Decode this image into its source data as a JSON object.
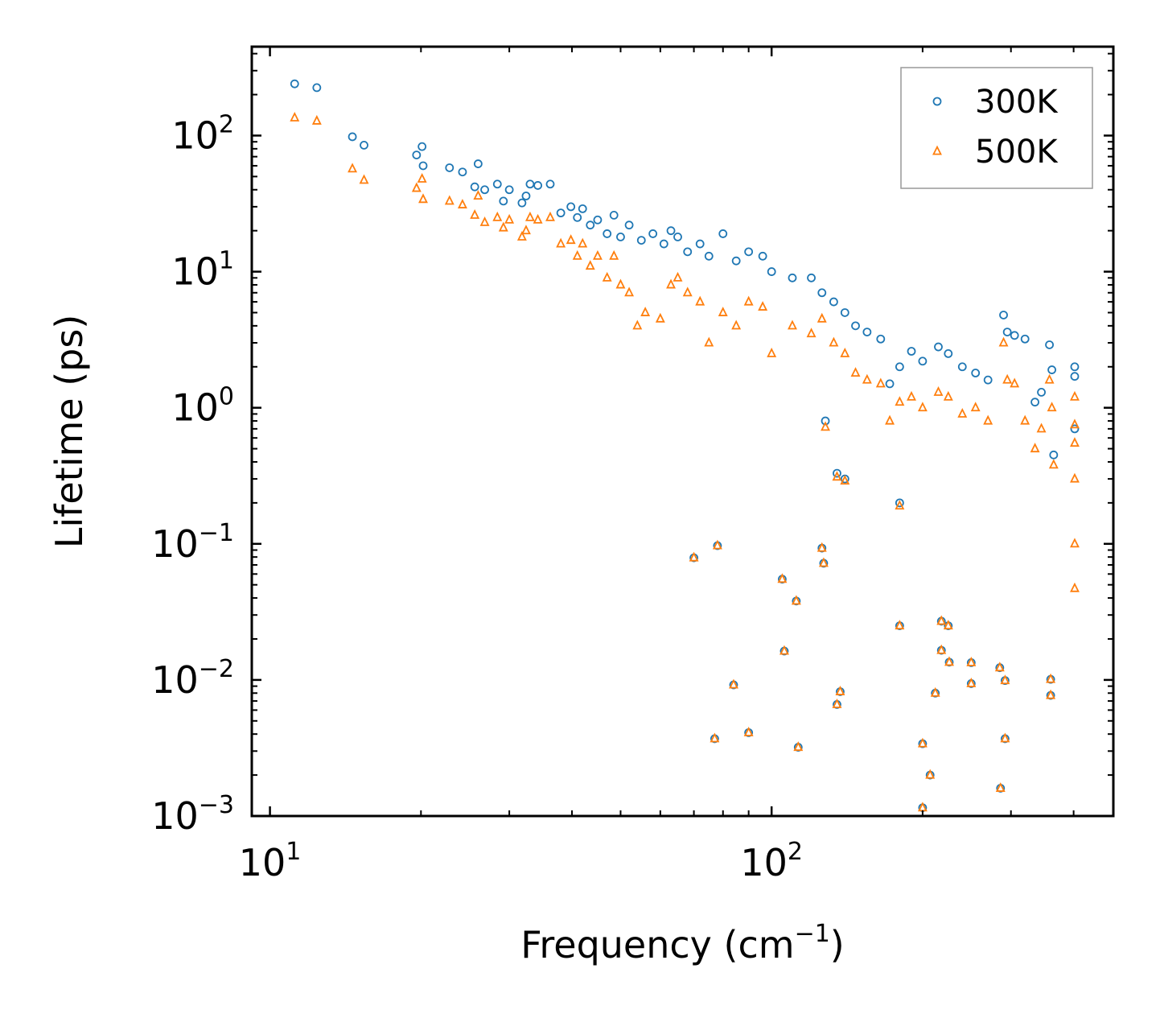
{
  "chart_data": {
    "type": "scatter",
    "title": "",
    "xlabel": "Frequency (cm",
    "xlabel_superscript": "−1",
    "xlabel_suffix": ")",
    "ylabel": "Lifetime (ps)",
    "xscale": "log",
    "yscale": "log",
    "xlim": [
      9.2,
      480
    ],
    "ylim": [
      0.001,
      450
    ],
    "x_ticks": [
      {
        "base": "10",
        "exp": "1",
        "value": 10
      },
      {
        "base": "10",
        "exp": "2",
        "value": 100
      }
    ],
    "y_ticks": [
      {
        "base": "10",
        "exp": "−3",
        "value": 0.001
      },
      {
        "base": "10",
        "exp": "−2",
        "value": 0.01
      },
      {
        "base": "10",
        "exp": "−1",
        "value": 0.1
      },
      {
        "base": "10",
        "exp": "0",
        "value": 1
      },
      {
        "base": "10",
        "exp": "1",
        "value": 10
      },
      {
        "base": "10",
        "exp": "2",
        "value": 100
      }
    ],
    "grid": false,
    "legend_position": "top-right",
    "series": [
      {
        "name": "300K",
        "marker": "circle-open",
        "color": "#1f77b4",
        "points": [
          [
            11.2,
            240
          ],
          [
            12.4,
            225
          ],
          [
            14.6,
            98
          ],
          [
            15.4,
            85
          ],
          [
            19.6,
            72
          ],
          [
            20.1,
            83
          ],
          [
            20.2,
            60
          ],
          [
            22.8,
            58
          ],
          [
            24.2,
            54
          ],
          [
            25.6,
            42
          ],
          [
            26.0,
            62
          ],
          [
            26.8,
            40
          ],
          [
            28.4,
            44
          ],
          [
            29.2,
            33
          ],
          [
            30.0,
            40
          ],
          [
            31.8,
            32
          ],
          [
            32.4,
            36
          ],
          [
            33.0,
            44
          ],
          [
            34.2,
            43
          ],
          [
            36.2,
            44
          ],
          [
            38.0,
            27
          ],
          [
            39.8,
            30
          ],
          [
            41.0,
            25
          ],
          [
            42.0,
            29
          ],
          [
            43.5,
            22
          ],
          [
            45.0,
            24
          ],
          [
            47.0,
            19
          ],
          [
            48.5,
            26
          ],
          [
            50.0,
            18
          ],
          [
            52.0,
            22
          ],
          [
            55.0,
            17
          ],
          [
            58.0,
            19
          ],
          [
            61.0,
            16
          ],
          [
            63.0,
            20
          ],
          [
            65.0,
            18
          ],
          [
            68.0,
            14
          ],
          [
            72.0,
            16
          ],
          [
            75.0,
            13
          ],
          [
            80.0,
            19
          ],
          [
            85.0,
            12
          ],
          [
            90.0,
            14
          ],
          [
            96.0,
            13
          ],
          [
            100.0,
            10
          ],
          [
            110.0,
            9
          ],
          [
            120.0,
            9
          ],
          [
            126.0,
            7
          ],
          [
            133.0,
            6
          ],
          [
            140.0,
            5
          ],
          [
            147.0,
            4
          ],
          [
            155.0,
            3.6
          ],
          [
            165.0,
            3.2
          ],
          [
            172.0,
            1.5
          ],
          [
            180.0,
            2.0
          ],
          [
            190.0,
            2.6
          ],
          [
            200.0,
            2.2
          ],
          [
            215.0,
            2.8
          ],
          [
            225.0,
            2.5
          ],
          [
            240.0,
            2.0
          ],
          [
            255.0,
            1.8
          ],
          [
            270.0,
            1.6
          ],
          [
            290.0,
            4.8
          ],
          [
            295.0,
            3.6
          ],
          [
            305.0,
            3.4
          ],
          [
            320.0,
            3.2
          ],
          [
            335.0,
            1.1
          ],
          [
            345.0,
            1.3
          ],
          [
            358.0,
            2.9
          ],
          [
            362.0,
            1.9
          ],
          [
            365.0,
            0.45
          ],
          [
            402.0,
            2.0
          ],
          [
            402.0,
            1.7
          ],
          [
            402.0,
            0.7
          ],
          [
            70.0,
            0.079
          ],
          [
            78.0,
            0.097
          ],
          [
            105.0,
            0.055
          ],
          [
            112.0,
            0.038
          ],
          [
            126.0,
            0.093
          ],
          [
            127.0,
            0.072
          ],
          [
            128.0,
            0.8
          ],
          [
            135.0,
            0.33
          ],
          [
            140.0,
            0.3
          ],
          [
            180.0,
            0.2
          ],
          [
            84.0,
            0.0092
          ],
          [
            77.0,
            0.0037
          ],
          [
            90.0,
            0.0041
          ],
          [
            106.0,
            0.0163
          ],
          [
            113.0,
            0.0032
          ],
          [
            135.0,
            0.0066
          ],
          [
            137.0,
            0.0082
          ],
          [
            180.0,
            0.025
          ],
          [
            200.0,
            0.0034
          ],
          [
            207.0,
            0.002
          ],
          [
            212.0,
            0.008
          ],
          [
            218.0,
            0.027
          ],
          [
            218.0,
            0.0165
          ],
          [
            225.0,
            0.025
          ],
          [
            226.0,
            0.0135
          ],
          [
            250.0,
            0.0134
          ],
          [
            250.0,
            0.0094
          ],
          [
            285.0,
            0.0123
          ],
          [
            286.0,
            0.0016
          ],
          [
            292.0,
            0.0099
          ],
          [
            292.0,
            0.0037
          ],
          [
            360.0,
            0.0101
          ],
          [
            360.0,
            0.0077
          ],
          [
            200.0,
            0.00115
          ]
        ]
      },
      {
        "name": "500K",
        "marker": "triangle-open",
        "color": "#ff7f0e",
        "points": [
          [
            11.2,
            135
          ],
          [
            12.4,
            128
          ],
          [
            14.6,
            57
          ],
          [
            15.4,
            47
          ],
          [
            19.6,
            41
          ],
          [
            20.1,
            48
          ],
          [
            20.2,
            34
          ],
          [
            22.8,
            33
          ],
          [
            24.2,
            31
          ],
          [
            25.6,
            26
          ],
          [
            26.0,
            36
          ],
          [
            26.8,
            23
          ],
          [
            28.4,
            25
          ],
          [
            29.2,
            21
          ],
          [
            30.0,
            24
          ],
          [
            31.8,
            18
          ],
          [
            32.4,
            20
          ],
          [
            33.0,
            25
          ],
          [
            34.2,
            24
          ],
          [
            36.2,
            25
          ],
          [
            38.0,
            16
          ],
          [
            39.8,
            17
          ],
          [
            41.0,
            13
          ],
          [
            42.0,
            16
          ],
          [
            43.5,
            11
          ],
          [
            45.0,
            13
          ],
          [
            47.0,
            9
          ],
          [
            48.5,
            13
          ],
          [
            50.0,
            8
          ],
          [
            52.0,
            7
          ],
          [
            54.0,
            4
          ],
          [
            56.0,
            5
          ],
          [
            60.0,
            4.5
          ],
          [
            63.0,
            8
          ],
          [
            65.0,
            9
          ],
          [
            68.0,
            7
          ],
          [
            72.0,
            6
          ],
          [
            75.0,
            3
          ],
          [
            80.0,
            5
          ],
          [
            85.0,
            4
          ],
          [
            90.0,
            6
          ],
          [
            96.0,
            5.5
          ],
          [
            100.0,
            2.5
          ],
          [
            110.0,
            4
          ],
          [
            120.0,
            3.5
          ],
          [
            126.0,
            4.5
          ],
          [
            133.0,
            3
          ],
          [
            140.0,
            2.5
          ],
          [
            147.0,
            1.8
          ],
          [
            155.0,
            1.6
          ],
          [
            165.0,
            1.5
          ],
          [
            172.0,
            0.8
          ],
          [
            180.0,
            1.1
          ],
          [
            190.0,
            1.2
          ],
          [
            200.0,
            1.0
          ],
          [
            215.0,
            1.3
          ],
          [
            225.0,
            1.2
          ],
          [
            240.0,
            0.9
          ],
          [
            255.0,
            1.0
          ],
          [
            270.0,
            0.8
          ],
          [
            290.0,
            3.0
          ],
          [
            295.0,
            1.6
          ],
          [
            305.0,
            1.5
          ],
          [
            320.0,
            0.8
          ],
          [
            335.0,
            0.5
          ],
          [
            345.0,
            0.7
          ],
          [
            358.0,
            1.6
          ],
          [
            362.0,
            1.0
          ],
          [
            365.0,
            0.38
          ],
          [
            402.0,
            1.2
          ],
          [
            402.0,
            0.75
          ],
          [
            402.0,
            0.55
          ],
          [
            402.0,
            0.3
          ],
          [
            402.0,
            0.1
          ],
          [
            402.0,
            0.047
          ],
          [
            70.0,
            0.079
          ],
          [
            78.0,
            0.097
          ],
          [
            105.0,
            0.055
          ],
          [
            112.0,
            0.038
          ],
          [
            126.0,
            0.093
          ],
          [
            127.0,
            0.072
          ],
          [
            128.0,
            0.72
          ],
          [
            135.0,
            0.31
          ],
          [
            140.0,
            0.29
          ],
          [
            180.0,
            0.19
          ],
          [
            84.0,
            0.0092
          ],
          [
            77.0,
            0.0037
          ],
          [
            90.0,
            0.0041
          ],
          [
            106.0,
            0.0163
          ],
          [
            113.0,
            0.0032
          ],
          [
            135.0,
            0.0066
          ],
          [
            137.0,
            0.0082
          ],
          [
            180.0,
            0.025
          ],
          [
            200.0,
            0.0034
          ],
          [
            207.0,
            0.002
          ],
          [
            212.0,
            0.008
          ],
          [
            218.0,
            0.027
          ],
          [
            218.0,
            0.0165
          ],
          [
            225.0,
            0.025
          ],
          [
            226.0,
            0.0135
          ],
          [
            250.0,
            0.0134
          ],
          [
            250.0,
            0.0094
          ],
          [
            285.0,
            0.0123
          ],
          [
            286.0,
            0.0016
          ],
          [
            292.0,
            0.0099
          ],
          [
            292.0,
            0.0037
          ],
          [
            360.0,
            0.0101
          ],
          [
            360.0,
            0.0077
          ],
          [
            200.0,
            0.00115
          ]
        ]
      }
    ]
  }
}
